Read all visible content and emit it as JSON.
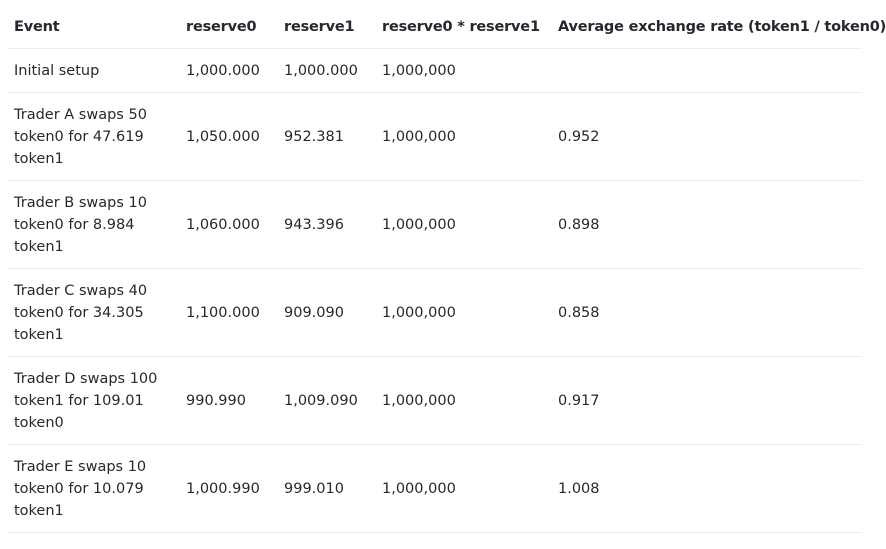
{
  "table": {
    "headers": [
      "Event",
      "reserve0",
      "reserve1",
      "reserve0 * reserve1",
      "Average exchange rate (token1 / token0)"
    ],
    "rows": [
      {
        "event": [
          "Initial setup"
        ],
        "reserve0": "1,000.000",
        "reserve1": "1,000.000",
        "product": "1,000,000",
        "rate": ""
      },
      {
        "event": [
          "Trader A swaps 50",
          "token0 for 47.619",
          "token1"
        ],
        "reserve0": "1,050.000",
        "reserve1": "952.381",
        "product": "1,000,000",
        "rate": "0.952"
      },
      {
        "event": [
          "Trader B swaps 10",
          "token0 for 8.984",
          "token1"
        ],
        "reserve0": "1,060.000",
        "reserve1": "943.396",
        "product": "1,000,000",
        "rate": "0.898"
      },
      {
        "event": [
          "Trader C swaps 40",
          "token0 for 34.305",
          "token1"
        ],
        "reserve0": "1,100.000",
        "reserve1": "909.090",
        "product": "1,000,000",
        "rate": "0.858"
      },
      {
        "event": [
          "Trader D swaps 100",
          "token1 for 109.01",
          "token0"
        ],
        "reserve0": "990.990",
        "reserve1": "1,009.090",
        "product": "1,000,000",
        "rate": "0.917"
      },
      {
        "event": [
          "Trader E swaps 10",
          "token0 for 10.079",
          "token1"
        ],
        "reserve0": "1,000.990",
        "reserve1": "999.010",
        "product": "1,000,000",
        "rate": "1.008"
      }
    ]
  }
}
